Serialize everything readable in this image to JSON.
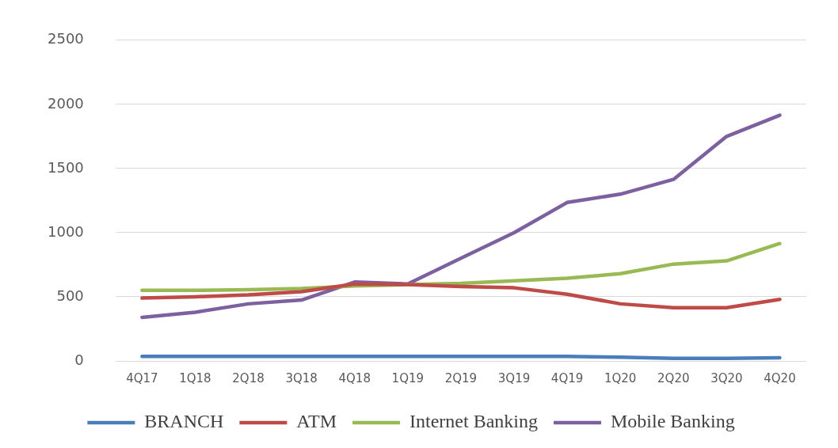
{
  "chart_data": {
    "type": "line",
    "categories": [
      "4Q17",
      "1Q18",
      "2Q18",
      "3Q18",
      "4Q18",
      "1Q19",
      "2Q19",
      "3Q19",
      "4Q19",
      "1Q20",
      "2Q20",
      "3Q20",
      "4Q20"
    ],
    "series": [
      {
        "name": "BRANCH",
        "color": "#4a7ebb",
        "values": [
          35,
          35,
          35,
          35,
          35,
          35,
          35,
          35,
          35,
          30,
          20,
          20,
          25
        ]
      },
      {
        "name": "ATM",
        "color": "#be4b48",
        "values": [
          490,
          500,
          515,
          540,
          600,
          595,
          580,
          570,
          520,
          445,
          415,
          415,
          480
        ]
      },
      {
        "name": "Internet Banking",
        "color": "#98b954",
        "values": [
          550,
          550,
          555,
          565,
          585,
          595,
          605,
          625,
          645,
          680,
          755,
          780,
          915
        ]
      },
      {
        "name": "Mobile Banking",
        "color": "#7d60a0",
        "values": [
          340,
          380,
          445,
          475,
          615,
          600,
          800,
          1000,
          1235,
          1300,
          1415,
          1750,
          1915
        ]
      }
    ],
    "ylim": [
      0,
      2500
    ],
    "yticks": [
      0,
      500,
      1000,
      1500,
      2000,
      2500
    ],
    "grid": "y",
    "legend": "bottom",
    "marker": "none",
    "line_style": "solid"
  }
}
